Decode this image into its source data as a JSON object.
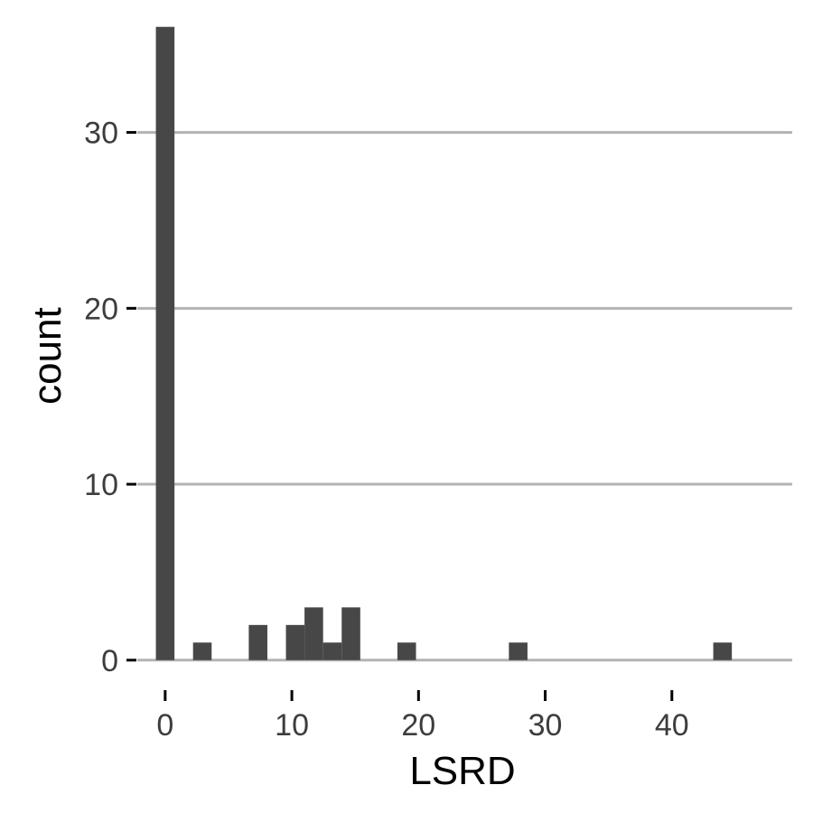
{
  "chart_data": {
    "type": "bar",
    "title": "",
    "xlabel": "LSRD",
    "ylabel": "count",
    "bin_width": 1.4667,
    "bins": [
      {
        "x": 0.0,
        "count": 36
      },
      {
        "x": 2.9333,
        "count": 1
      },
      {
        "x": 7.3333,
        "count": 2
      },
      {
        "x": 10.2667,
        "count": 2
      },
      {
        "x": 11.7333,
        "count": 3
      },
      {
        "x": 13.2,
        "count": 1
      },
      {
        "x": 14.6667,
        "count": 3
      },
      {
        "x": 19.0667,
        "count": 1
      },
      {
        "x": 27.8667,
        "count": 1
      },
      {
        "x": 44.0,
        "count": 1
      }
    ],
    "xlim": [
      -2.2,
      49.5
    ],
    "ylim": [
      -1.5,
      36.5
    ],
    "x_ticks": [
      0,
      10,
      20,
      30,
      40
    ],
    "y_ticks": [
      0,
      10,
      20,
      30
    ],
    "grid": "horizontal",
    "colors": {
      "bar": "#474747",
      "grid": "#b3b3b3",
      "tick_mark": "#000000",
      "tick_label": "#3d3d3d",
      "axis_title": "#000000"
    }
  }
}
